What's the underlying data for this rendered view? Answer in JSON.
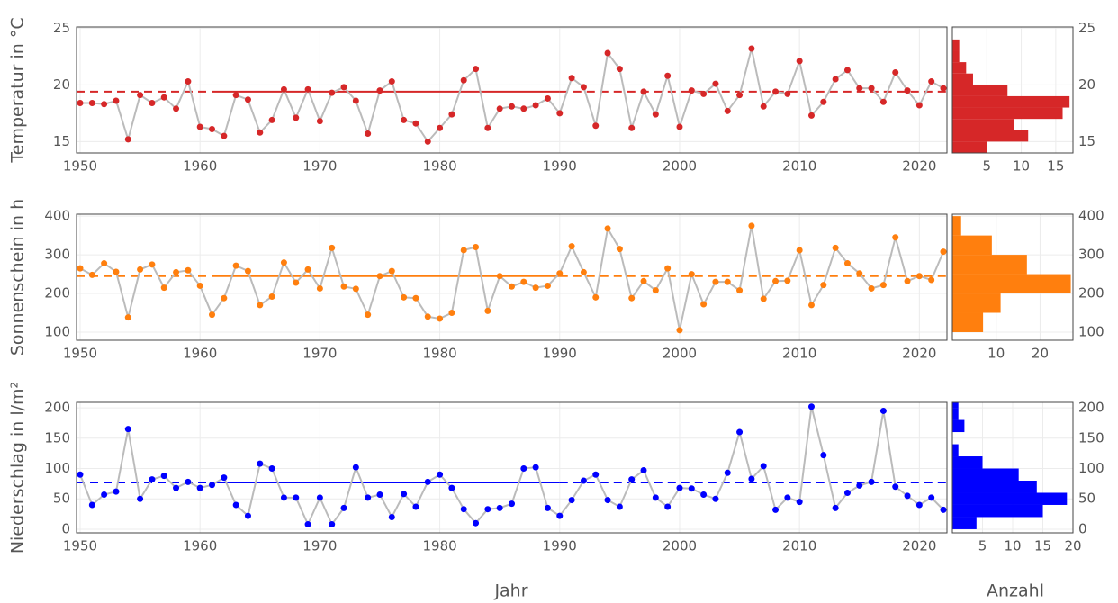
{
  "x_label": "Jahr",
  "count_label": "Anzahl",
  "chart_data": [
    {
      "type": "line",
      "y_label": "Temperatur in °C",
      "color": "#d62728",
      "line_color": "#bbbbbb",
      "grid": true,
      "x": [
        1950,
        1951,
        1952,
        1953,
        1954,
        1955,
        1956,
        1957,
        1958,
        1959,
        1960,
        1961,
        1962,
        1963,
        1964,
        1965,
        1966,
        1967,
        1968,
        1969,
        1970,
        1971,
        1972,
        1973,
        1974,
        1975,
        1976,
        1977,
        1978,
        1979,
        1980,
        1981,
        1982,
        1983,
        1984,
        1985,
        1986,
        1987,
        1988,
        1989,
        1990,
        1991,
        1992,
        1993,
        1994,
        1995,
        1996,
        1997,
        1998,
        1999,
        2000,
        2001,
        2002,
        2003,
        2004,
        2005,
        2006,
        2007,
        2008,
        2009,
        2010,
        2011,
        2012,
        2013,
        2014,
        2015,
        2016,
        2017,
        2018,
        2019,
        2020,
        2021,
        2022
      ],
      "values": [
        18.4,
        18.4,
        18.3,
        18.6,
        15.2,
        19.1,
        18.4,
        18.9,
        17.9,
        20.3,
        16.3,
        16.1,
        15.5,
        19.1,
        18.7,
        15.8,
        16.9,
        19.6,
        17.1,
        19.6,
        16.8,
        19.3,
        19.8,
        18.6,
        15.7,
        19.5,
        20.3,
        16.9,
        16.6,
        15.0,
        16.2,
        17.4,
        20.4,
        21.4,
        16.2,
        17.9,
        18.1,
        17.9,
        18.2,
        18.8,
        17.5,
        20.6,
        19.8,
        16.4,
        22.8,
        21.4,
        16.2,
        19.4,
        17.4,
        20.8,
        16.3,
        19.5,
        19.2,
        20.1,
        17.7,
        19.1,
        23.2,
        18.1,
        19.4,
        19.2,
        22.1,
        17.3,
        18.5,
        20.5,
        21.3,
        19.7,
        19.7,
        18.5,
        21.1,
        19.5,
        18.2,
        20.3,
        19.7
      ],
      "mean": 19.4,
      "mean_period": [
        1961,
        1990
      ],
      "xlim": [
        1949.7,
        2022.3
      ],
      "xticks": [
        1950,
        1960,
        1970,
        1980,
        1990,
        2000,
        2010,
        2020
      ],
      "ylim": [
        14,
        25.1
      ],
      "yticks": [
        15,
        20,
        25
      ],
      "histogram": {
        "bins": [
          14,
          15,
          16,
          17,
          18,
          19,
          20,
          21,
          22,
          23,
          24
        ],
        "counts": [
          5,
          11,
          9,
          16,
          17,
          8,
          3,
          2,
          1,
          1
        ],
        "xlim": [
          0,
          17.5
        ],
        "xticks": [
          5,
          10,
          15
        ]
      }
    },
    {
      "type": "line",
      "y_label": "Sonnenschein in h",
      "color": "#ff7f0e",
      "line_color": "#bbbbbb",
      "grid": true,
      "x": [
        1950,
        1951,
        1952,
        1953,
        1954,
        1955,
        1956,
        1957,
        1958,
        1959,
        1960,
        1961,
        1962,
        1963,
        1964,
        1965,
        1966,
        1967,
        1968,
        1969,
        1970,
        1971,
        1972,
        1973,
        1974,
        1975,
        1976,
        1977,
        1978,
        1979,
        1980,
        1981,
        1982,
        1983,
        1984,
        1985,
        1986,
        1987,
        1988,
        1989,
        1990,
        1991,
        1992,
        1993,
        1994,
        1995,
        1996,
        1997,
        1998,
        1999,
        2000,
        2001,
        2002,
        2003,
        2004,
        2005,
        2006,
        2007,
        2008,
        2009,
        2010,
        2011,
        2012,
        2013,
        2014,
        2015,
        2016,
        2017,
        2018,
        2019,
        2020,
        2021,
        2022
      ],
      "values": [
        265,
        248,
        278,
        256,
        138,
        262,
        275,
        215,
        255,
        260,
        220,
        145,
        188,
        272,
        258,
        170,
        192,
        280,
        228,
        262,
        213,
        318,
        218,
        212,
        145,
        245,
        258,
        190,
        188,
        140,
        135,
        150,
        312,
        320,
        155,
        245,
        218,
        230,
        215,
        220,
        252,
        322,
        255,
        190,
        368,
        315,
        188,
        232,
        208,
        265,
        105,
        250,
        172,
        230,
        230,
        208,
        375,
        186,
        232,
        233,
        312,
        170,
        222,
        318,
        278,
        252,
        213,
        222,
        345,
        232,
        245,
        235,
        308
      ],
      "mean": 245,
      "mean_period": [
        1961,
        1990
      ],
      "xlim": [
        1949.7,
        2022.3
      ],
      "xticks": [
        1950,
        1960,
        1970,
        1980,
        1990,
        2000,
        2010,
        2020
      ],
      "ylim": [
        79,
        405
      ],
      "yticks": [
        100,
        200,
        300,
        400
      ],
      "histogram": {
        "bins": [
          100,
          150,
          200,
          250,
          300,
          350,
          400
        ],
        "counts": [
          7,
          11,
          27,
          17,
          9,
          2
        ],
        "xlim": [
          0,
          27.5
        ],
        "xticks": [
          10,
          20
        ]
      }
    },
    {
      "type": "line",
      "y_label": "Niederschlag in l/m²",
      "color": "#0000ff",
      "line_color": "#bbbbbb",
      "grid": true,
      "x": [
        1950,
        1951,
        1952,
        1953,
        1954,
        1955,
        1956,
        1957,
        1958,
        1959,
        1960,
        1961,
        1962,
        1963,
        1964,
        1965,
        1966,
        1967,
        1968,
        1969,
        1970,
        1971,
        1972,
        1973,
        1974,
        1975,
        1976,
        1977,
        1978,
        1979,
        1980,
        1981,
        1982,
        1983,
        1984,
        1985,
        1986,
        1987,
        1988,
        1989,
        1990,
        1991,
        1992,
        1993,
        1994,
        1995,
        1996,
        1997,
        1998,
        1999,
        2000,
        2001,
        2002,
        2003,
        2004,
        2005,
        2006,
        2007,
        2008,
        2009,
        2010,
        2011,
        2012,
        2013,
        2014,
        2015,
        2016,
        2017,
        2018,
        2019,
        2020,
        2021,
        2022
      ],
      "values": [
        90,
        40,
        57,
        62,
        165,
        50,
        82,
        88,
        68,
        78,
        68,
        73,
        85,
        40,
        22,
        108,
        100,
        52,
        52,
        8,
        52,
        8,
        35,
        102,
        52,
        57,
        20,
        58,
        37,
        78,
        90,
        68,
        33,
        10,
        33,
        35,
        42,
        100,
        102,
        35,
        22,
        48,
        80,
        90,
        48,
        37,
        82,
        97,
        52,
        37,
        68,
        67,
        57,
        50,
        93,
        160,
        83,
        104,
        32,
        52,
        45,
        202,
        122,
        35,
        60,
        72,
        78,
        195,
        70,
        55,
        40,
        52,
        32
      ],
      "mean": 77,
      "mean_period": [
        1961,
        1990
      ],
      "xlim": [
        1949.7,
        2022.3
      ],
      "xticks": [
        1950,
        1960,
        1970,
        1980,
        1990,
        2000,
        2010,
        2020
      ],
      "ylim": [
        -6,
        209
      ],
      "yticks": [
        0,
        50,
        100,
        150,
        200
      ],
      "histogram": {
        "bins": [
          0,
          20,
          40,
          60,
          80,
          100,
          120,
          140,
          160,
          180,
          200,
          220
        ],
        "counts": [
          4,
          15,
          19,
          14,
          11,
          5,
          1,
          0,
          2,
          1,
          1
        ],
        "xlim": [
          0,
          20
        ],
        "xticks": [
          5,
          10,
          15,
          20
        ]
      }
    }
  ]
}
